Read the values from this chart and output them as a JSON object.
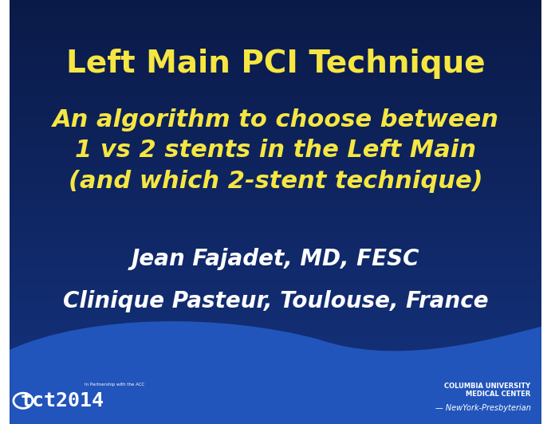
{
  "title": "Left Main PCI Technique",
  "subtitle_line1": "An algorithm to choose between",
  "subtitle_line2": "1 vs 2 stents in the Left Main",
  "subtitle_line3": "(and which 2-stent technique)",
  "author": "Jean Fajadet, MD, FESC",
  "institution": "Clinique Pasteur, Toulouse, France",
  "tct_text": "tct2014",
  "columbia_line1": "COLUMBIA UNIVERSITY",
  "columbia_line2": "MEDICAL CENTER",
  "columbia_line3": "— NewYork-Presbyterian",
  "bg_top_color": "#0a1a4a",
  "bg_bottom_color": "#1a3a8a",
  "wave_color": "#1e4db0",
  "title_color": "#f5e642",
  "subtitle_color": "#f5e642",
  "author_color": "#ffffff",
  "institution_color": "#ffffff",
  "footer_color": "#ffffff",
  "figwidth": 6.91,
  "figheight": 5.32
}
